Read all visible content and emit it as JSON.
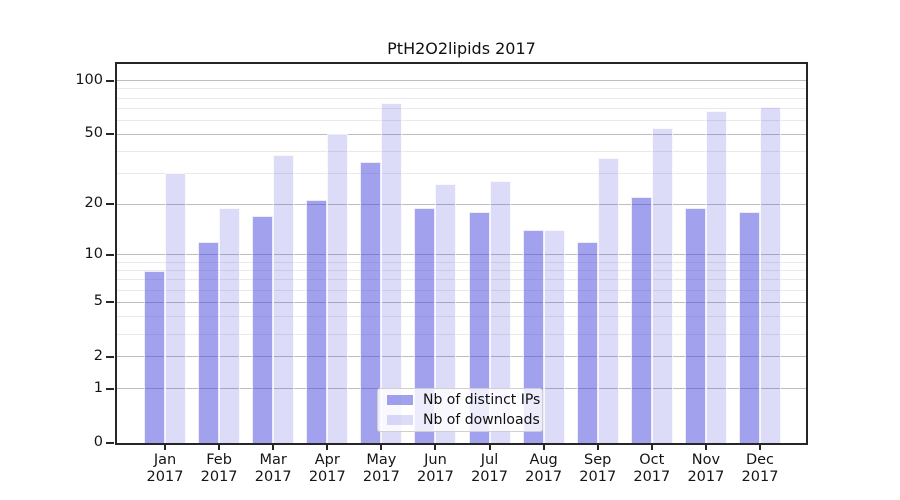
{
  "chart_data": {
    "type": "bar",
    "title": "PtH2O2lipids 2017",
    "categories": [
      "Jan",
      "Feb",
      "Mar",
      "Apr",
      "May",
      "Jun",
      "Jul",
      "Aug",
      "Sep",
      "Oct",
      "Nov",
      "Dec"
    ],
    "year": "2017",
    "series": [
      {
        "name": "Nb of distinct IPs",
        "slug": "distinct-ips",
        "color": "#a2a2ee",
        "values": [
          8,
          12,
          17,
          21,
          35,
          19,
          18,
          14,
          12,
          22,
          19,
          18
        ]
      },
      {
        "name": "Nb of downloads",
        "slug": "downloads",
        "color": "#dcdcf8",
        "values": [
          30,
          19,
          38,
          50,
          75,
          26,
          27,
          14,
          37,
          54,
          68,
          71
        ]
      }
    ],
    "xlabel": "",
    "ylabel": "",
    "yscale": "log1p",
    "ylim": [
      0,
      124
    ],
    "yticks": [
      0,
      1,
      2,
      5,
      10,
      20,
      50,
      100
    ],
    "minor_yticks": [
      3,
      4,
      6,
      7,
      8,
      9,
      30,
      40,
      60,
      70,
      80,
      90
    ],
    "grid": "on",
    "grid_major_color": "#bdbdbd",
    "grid_minor_color": "#e9e9e9",
    "spine_color": "#262626",
    "legend_position": "lower center"
  }
}
